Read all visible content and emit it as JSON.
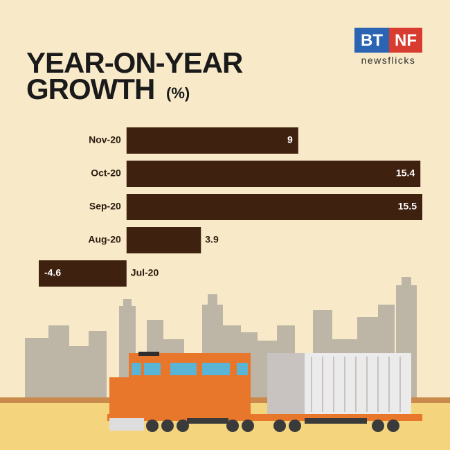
{
  "chart_data": {
    "type": "hbar",
    "title": [
      "YEAR-ON-YEAR",
      "GROWTH"
    ],
    "unit": "(%)",
    "categories": [
      "Nov-20",
      "Oct-20",
      "Sep-20",
      "Aug-20",
      "Jul-20"
    ],
    "values": [
      9,
      15.4,
      15.5,
      3.9,
      -4.6
    ],
    "color": "#3f2110"
  },
  "logo": {
    "left": "BT",
    "right": "NF",
    "tagline": "newsflicks"
  }
}
